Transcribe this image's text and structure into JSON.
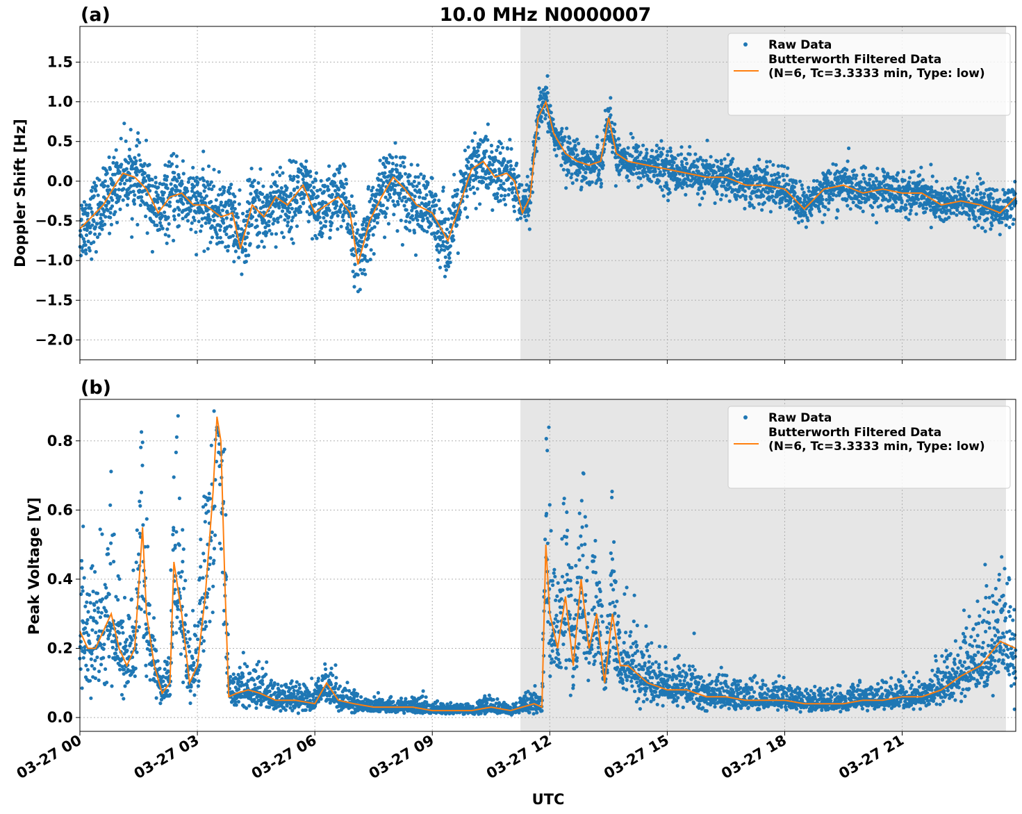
{
  "figure": {
    "title": "10.0 MHz N0000007",
    "xlabel": "UTC",
    "colors": {
      "raw": "#1f77b4",
      "filtered": "#ff7f0e",
      "shade": "#e6e6e6",
      "grid": "#b0b0b0"
    }
  },
  "chart_data": [
    {
      "type": "scatter",
      "panel_label": "(a)",
      "ylabel": "Doppler Shift [Hz]",
      "x_unit": "hours UTC, 2023-03-27",
      "xlim": [
        0,
        23.9
      ],
      "ylim": [
        -2.25,
        1.95
      ],
      "yticks": [
        1.5,
        1.0,
        0.5,
        0.0,
        -0.5,
        -1.0,
        -1.5,
        -2.0
      ],
      "ytick_labels": [
        "1.5",
        "1.0",
        "0.5",
        "0.0",
        "−0.5",
        "−1.0",
        "−1.5",
        "−2.0"
      ],
      "grid": true,
      "shaded_span": [
        11.25,
        23.65
      ],
      "legend": {
        "placement": "top-right",
        "entries": [
          "Raw Data",
          "Butterworth Filtered Data",
          "(N=6, Tc=3.3333 min, Type: low)"
        ]
      },
      "series": [
        {
          "name": "Raw Data",
          "style": "points"
        },
        {
          "name": "Butterworth Filtered Data",
          "style": "line",
          "x": [
            0,
            0.3,
            0.6,
            0.9,
            1.1,
            1.4,
            1.7,
            2.0,
            2.3,
            2.6,
            2.9,
            3.2,
            3.6,
            3.9,
            4.1,
            4.4,
            4.7,
            5.0,
            5.3,
            5.7,
            6.0,
            6.3,
            6.6,
            6.9,
            7.1,
            7.4,
            7.7,
            8.0,
            8.3,
            8.6,
            9.0,
            9.4,
            9.7,
            10.0,
            10.3,
            10.6,
            10.9,
            11.1,
            11.3,
            11.5,
            11.7,
            11.9,
            12.1,
            12.4,
            12.7,
            13.0,
            13.3,
            13.5,
            13.7,
            14.0,
            14.5,
            15.0,
            15.5,
            16.0,
            16.5,
            17.0,
            17.5,
            18.0,
            18.5,
            19.0,
            19.5,
            20.0,
            20.5,
            21.0,
            21.5,
            22.0,
            22.5,
            23.0,
            23.5,
            23.9
          ],
          "values": [
            -0.6,
            -0.45,
            -0.3,
            -0.05,
            0.1,
            0.05,
            -0.1,
            -0.4,
            -0.2,
            -0.15,
            -0.3,
            -0.3,
            -0.45,
            -0.4,
            -0.85,
            -0.3,
            -0.45,
            -0.2,
            -0.3,
            -0.05,
            -0.4,
            -0.3,
            -0.2,
            -0.4,
            -1.05,
            -0.5,
            -0.2,
            0.05,
            -0.1,
            -0.3,
            -0.4,
            -0.75,
            -0.3,
            0.15,
            0.25,
            0.05,
            0.1,
            0.0,
            -0.4,
            -0.2,
            0.8,
            1.0,
            0.6,
            0.35,
            0.25,
            0.2,
            0.25,
            0.8,
            0.35,
            0.25,
            0.2,
            0.15,
            0.1,
            0.05,
            0.05,
            -0.05,
            -0.05,
            -0.1,
            -0.35,
            -0.1,
            -0.05,
            -0.15,
            -0.1,
            -0.15,
            -0.15,
            -0.3,
            -0.25,
            -0.3,
            -0.4,
            -0.2
          ]
        }
      ]
    },
    {
      "type": "scatter",
      "panel_label": "(b)",
      "ylabel": "Peak Voltage [V]",
      "x_unit": "hours UTC, 2023-03-27",
      "xlim": [
        0,
        23.9
      ],
      "ylim": [
        -0.04,
        0.92
      ],
      "yticks": [
        0.0,
        0.2,
        0.4,
        0.6,
        0.8
      ],
      "ytick_labels": [
        "0.0",
        "0.2",
        "0.4",
        "0.6",
        "0.8"
      ],
      "grid": true,
      "shaded_span": [
        11.25,
        23.65
      ],
      "legend": {
        "placement": "top-right",
        "entries": [
          "Raw Data",
          "Butterworth Filtered Data",
          "(N=6, Tc=3.3333 min, Type: low)"
        ]
      },
      "series": [
        {
          "name": "Raw Data",
          "style": "points"
        },
        {
          "name": "Butterworth Filtered Data",
          "style": "line",
          "x": [
            0,
            0.2,
            0.4,
            0.6,
            0.8,
            1.0,
            1.2,
            1.4,
            1.6,
            1.7,
            1.9,
            2.1,
            2.3,
            2.4,
            2.6,
            2.8,
            3.0,
            3.2,
            3.4,
            3.5,
            3.6,
            3.7,
            3.8,
            4.0,
            4.3,
            4.6,
            5.0,
            5.5,
            6.0,
            6.3,
            6.6,
            7.0,
            7.5,
            8.0,
            8.5,
            9.0,
            9.5,
            10.0,
            10.5,
            11.0,
            11.3,
            11.6,
            11.8,
            11.9,
            12.0,
            12.2,
            12.4,
            12.6,
            12.8,
            13.0,
            13.2,
            13.4,
            13.6,
            13.8,
            14.0,
            14.5,
            15.0,
            15.5,
            16.0,
            16.5,
            17.0,
            17.5,
            18.0,
            18.5,
            19.0,
            19.5,
            20.0,
            20.5,
            21.0,
            21.5,
            22.0,
            22.5,
            23.0,
            23.5,
            23.9
          ],
          "values": [
            0.25,
            0.2,
            0.2,
            0.25,
            0.3,
            0.2,
            0.15,
            0.2,
            0.55,
            0.3,
            0.15,
            0.07,
            0.1,
            0.45,
            0.3,
            0.1,
            0.15,
            0.35,
            0.65,
            0.87,
            0.8,
            0.4,
            0.06,
            0.07,
            0.08,
            0.07,
            0.05,
            0.05,
            0.04,
            0.1,
            0.05,
            0.04,
            0.03,
            0.03,
            0.03,
            0.02,
            0.02,
            0.02,
            0.03,
            0.02,
            0.03,
            0.04,
            0.03,
            0.5,
            0.3,
            0.2,
            0.35,
            0.15,
            0.4,
            0.2,
            0.3,
            0.1,
            0.3,
            0.15,
            0.15,
            0.1,
            0.08,
            0.08,
            0.06,
            0.06,
            0.05,
            0.05,
            0.05,
            0.04,
            0.04,
            0.04,
            0.05,
            0.05,
            0.06,
            0.06,
            0.08,
            0.12,
            0.15,
            0.22,
            0.2
          ]
        }
      ]
    }
  ],
  "x_axis": {
    "ticks": [
      0,
      3,
      6,
      9,
      12,
      15,
      18,
      21
    ],
    "tick_labels": [
      "03-27 00",
      "03-27 03",
      "03-27 06",
      "03-27 09",
      "03-27 12",
      "03-27 15",
      "03-27 18",
      "03-27 21"
    ]
  }
}
